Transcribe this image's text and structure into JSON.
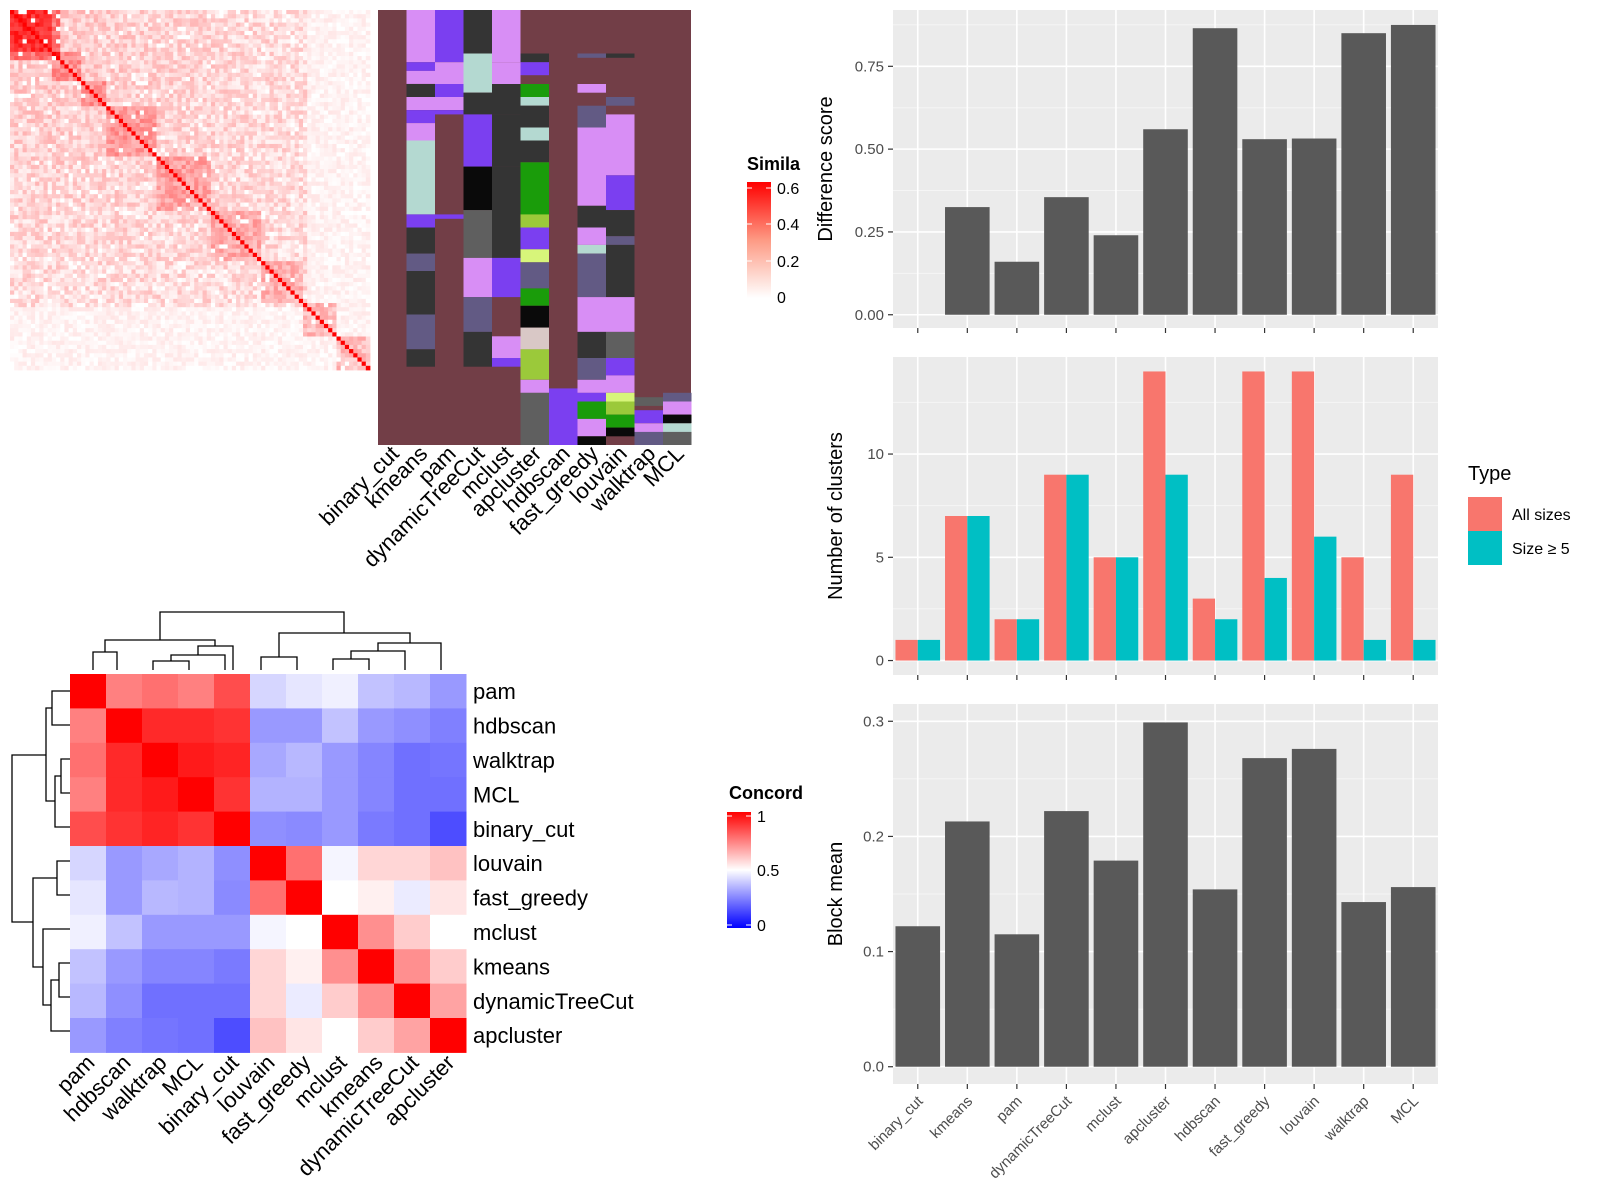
{
  "chart_data": [
    {
      "type": "heatmap",
      "variant": "similarity-matrix-with-cluster-annotations",
      "legend_title": "Simila",
      "legend_ticks": [
        "0.6",
        "0.4",
        "0.2",
        "0"
      ],
      "colors": {
        "low": "#ffffff",
        "high": "#ff0000"
      },
      "annotation_columns": [
        "binary_cut",
        "kmeans",
        "pam",
        "dynamicTreeCut",
        "mclust",
        "apcluster",
        "hdbscan",
        "fast_greedy",
        "louvain",
        "walktrap",
        "MCL"
      ],
      "annotation_background": "#723e47"
    },
    {
      "type": "heatmap",
      "variant": "clustered-concordance-matrix",
      "legend_title": "Concord",
      "legend_ticks": [
        "1",
        "0.5",
        "0"
      ],
      "colors": {
        "low": "#0000ff",
        "mid": "#ffffff",
        "high": "#ff0000"
      },
      "rows": [
        "pam",
        "hdbscan",
        "walktrap",
        "MCL",
        "binary_cut",
        "louvain",
        "fast_greedy",
        "mclust",
        "kmeans",
        "dynamicTreeCut",
        "apcluster"
      ],
      "columns": [
        "pam",
        "hdbscan",
        "walktrap",
        "MCL",
        "binary_cut",
        "louvain",
        "fast_greedy",
        "mclust",
        "kmeans",
        "dynamicTreeCut",
        "apcluster"
      ],
      "values": [
        [
          1.0,
          0.75,
          0.78,
          0.75,
          0.85,
          0.42,
          0.45,
          0.47,
          0.38,
          0.36,
          0.3
        ],
        [
          0.75,
          1.0,
          0.92,
          0.92,
          0.9,
          0.3,
          0.3,
          0.38,
          0.3,
          0.28,
          0.25
        ],
        [
          0.78,
          0.92,
          1.0,
          0.95,
          0.93,
          0.33,
          0.36,
          0.3,
          0.26,
          0.22,
          0.23
        ],
        [
          0.75,
          0.92,
          0.95,
          1.0,
          0.9,
          0.35,
          0.35,
          0.3,
          0.26,
          0.22,
          0.22
        ],
        [
          0.85,
          0.9,
          0.93,
          0.9,
          1.0,
          0.28,
          0.27,
          0.3,
          0.24,
          0.22,
          0.15
        ],
        [
          0.42,
          0.3,
          0.33,
          0.35,
          0.28,
          1.0,
          0.78,
          0.48,
          0.58,
          0.58,
          0.62
        ],
        [
          0.45,
          0.3,
          0.36,
          0.35,
          0.27,
          0.78,
          1.0,
          0.5,
          0.53,
          0.46,
          0.55
        ],
        [
          0.47,
          0.38,
          0.3,
          0.3,
          0.3,
          0.48,
          0.5,
          1.0,
          0.72,
          0.6,
          0.5
        ],
        [
          0.38,
          0.3,
          0.26,
          0.26,
          0.24,
          0.58,
          0.53,
          0.72,
          1.0,
          0.72,
          0.6
        ],
        [
          0.36,
          0.28,
          0.22,
          0.22,
          0.22,
          0.58,
          0.46,
          0.6,
          0.72,
          1.0,
          0.68
        ],
        [
          0.3,
          0.25,
          0.23,
          0.22,
          0.15,
          0.62,
          0.55,
          0.5,
          0.6,
          0.68,
          1.0
        ]
      ]
    },
    {
      "type": "bar",
      "ylabel": "Difference score",
      "categories": [
        "binary_cut",
        "kmeans",
        "pam",
        "dynamicTreeCut",
        "mclust",
        "apcluster",
        "hdbscan",
        "fast_greedy",
        "louvain",
        "walktrap",
        "MCL"
      ],
      "values": [
        0,
        0.325,
        0.16,
        0.355,
        0.24,
        0.56,
        0.865,
        0.53,
        0.532,
        0.85,
        0.875
      ],
      "ylim": [
        -0.04,
        0.92
      ],
      "yticks": [
        "0.00",
        "0.25",
        "0.50",
        "0.75"
      ],
      "grid": true
    },
    {
      "type": "bar",
      "ylabel": "Number of clusters",
      "categories": [
        "binary_cut",
        "kmeans",
        "pam",
        "dynamicTreeCut",
        "mclust",
        "apcluster",
        "hdbscan",
        "fast_greedy",
        "louvain",
        "walktrap",
        "MCL"
      ],
      "series": [
        {
          "name": "All sizes",
          "color": "#f8766d",
          "values": [
            1,
            7,
            2,
            9,
            5,
            14,
            3,
            14,
            14,
            5,
            9
          ]
        },
        {
          "name": "Size ≥ 5",
          "color": "#00bfc4",
          "values": [
            1,
            7,
            2,
            9,
            5,
            9,
            2,
            4,
            6,
            1,
            1
          ]
        }
      ],
      "ylim": [
        -0.7,
        14.7
      ],
      "yticks": [
        "0",
        "5",
        "10"
      ],
      "legend_title": "Type",
      "legend_position": "right",
      "grid": true
    },
    {
      "type": "bar",
      "ylabel": "Block mean",
      "categories": [
        "binary_cut",
        "kmeans",
        "pam",
        "dynamicTreeCut",
        "mclust",
        "apcluster",
        "hdbscan",
        "fast_greedy",
        "louvain",
        "walktrap",
        "MCL"
      ],
      "values": [
        0.122,
        0.213,
        0.115,
        0.222,
        0.179,
        0.299,
        0.154,
        0.268,
        0.276,
        0.143,
        0.156
      ],
      "ylim": [
        -0.015,
        0.315
      ],
      "yticks": [
        "0.0",
        "0.1",
        "0.2",
        "0.3"
      ],
      "grid": true
    }
  ],
  "colors": {
    "bar": "#595959",
    "panel": "#ebebeb",
    "grid": "#ffffff",
    "annotation_palette": [
      "#d88ef5",
      "#7b3ff0",
      "#b4d9d1",
      "#343434",
      "#5f5f5f",
      "#625a84",
      "#0a0a0a",
      "#1a9c0a",
      "#9bc93a",
      "#d9c8c6",
      "#d7f57a"
    ]
  }
}
